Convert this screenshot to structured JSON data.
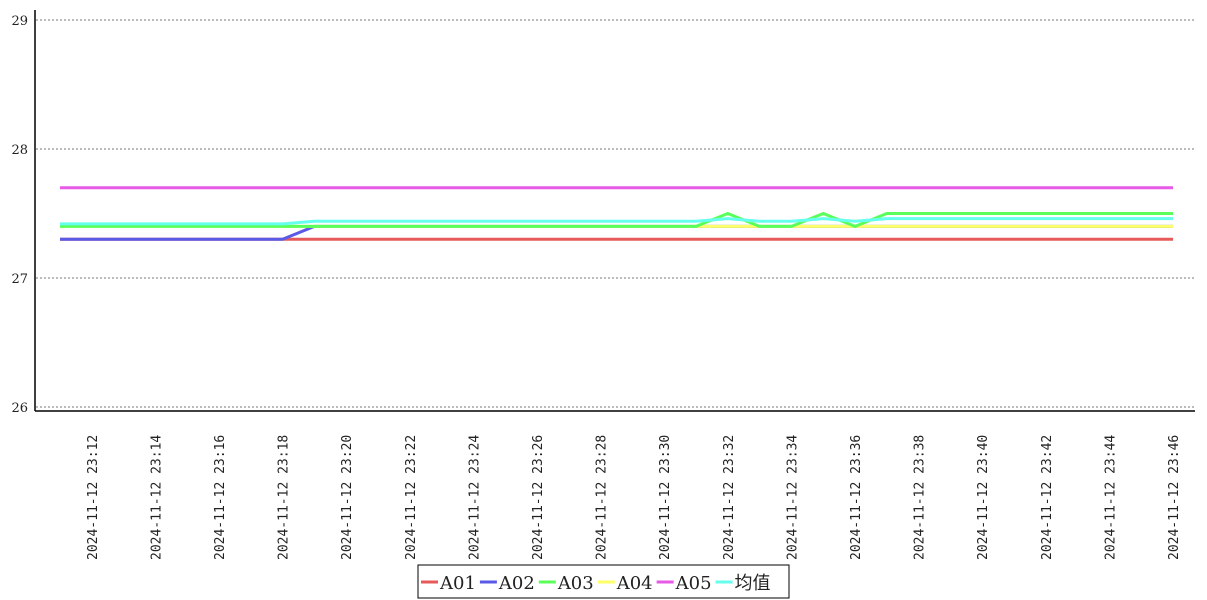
{
  "chart_data": {
    "type": "line",
    "categories": [
      null,
      "2024-11-12 23:12",
      null,
      "2024-11-12 23:14",
      null,
      "2024-11-12 23:16",
      null,
      "2024-11-12 23:18",
      null,
      "2024-11-12 23:20",
      null,
      "2024-11-12 23:22",
      null,
      "2024-11-12 23:24",
      null,
      "2024-11-12 23:26",
      null,
      "2024-11-12 23:28",
      null,
      "2024-11-12 23:30",
      null,
      "2024-11-12 23:32",
      null,
      "2024-11-12 23:34",
      null,
      "2024-11-12 23:36",
      null,
      "2024-11-12 23:38",
      null,
      "2024-11-12 23:40",
      null,
      "2024-11-12 23:42",
      null,
      "2024-11-12 23:44",
      null,
      "2024-11-12 23:46"
    ],
    "series": [
      {
        "name": "A01",
        "color": "#e65a5a",
        "values": [
          27.3,
          27.3,
          27.3,
          27.3,
          27.3,
          27.3,
          27.3,
          27.3,
          27.3,
          27.3,
          27.3,
          27.3,
          27.3,
          27.3,
          27.3,
          27.3,
          27.3,
          27.3,
          27.3,
          27.3,
          27.3,
          27.3,
          27.3,
          27.3,
          27.3,
          27.3,
          27.3,
          27.3,
          27.3,
          27.3,
          27.3,
          27.3,
          27.3,
          27.3,
          27.3,
          27.3
        ]
      },
      {
        "name": "A02",
        "color": "#5a5ae6",
        "values": [
          27.3,
          27.3,
          27.3,
          27.3,
          27.3,
          27.3,
          27.3,
          27.3,
          27.4,
          27.4,
          27.4,
          27.4,
          27.4,
          27.4,
          27.4,
          27.4,
          27.4,
          27.4,
          27.4,
          27.4,
          27.4,
          27.4,
          27.4,
          27.4,
          27.4,
          27.4,
          27.4,
          27.4,
          27.4,
          27.4,
          27.4,
          27.4,
          27.4,
          27.4,
          27.4,
          27.4
        ]
      },
      {
        "name": "A04",
        "color": "#ffff66",
        "values": [
          27.4,
          27.4,
          27.4,
          27.4,
          27.4,
          27.4,
          27.4,
          27.4,
          27.4,
          27.4,
          27.4,
          27.4,
          27.4,
          27.4,
          27.4,
          27.4,
          27.4,
          27.4,
          27.4,
          27.4,
          27.4,
          27.4,
          27.4,
          27.4,
          27.4,
          27.4,
          27.4,
          27.4,
          27.4,
          27.4,
          27.4,
          27.4,
          27.4,
          27.4,
          27.4,
          27.4
        ]
      },
      {
        "name": "A03",
        "color": "#5aff5a",
        "values": [
          27.4,
          27.4,
          27.4,
          27.4,
          27.4,
          27.4,
          27.4,
          27.4,
          27.4,
          27.4,
          27.4,
          27.4,
          27.4,
          27.4,
          27.4,
          27.4,
          27.4,
          27.4,
          27.4,
          27.4,
          27.4,
          27.5,
          27.4,
          27.4,
          27.5,
          27.4,
          27.5,
          27.5,
          27.5,
          27.5,
          27.5,
          27.5,
          27.5,
          27.5,
          27.5,
          27.5
        ]
      },
      {
        "name": "A05",
        "color": "#e65ae6",
        "values": [
          27.7,
          27.7,
          27.7,
          27.7,
          27.7,
          27.7,
          27.7,
          27.7,
          27.7,
          27.7,
          27.7,
          27.7,
          27.7,
          27.7,
          27.7,
          27.7,
          27.7,
          27.7,
          27.7,
          27.7,
          27.7,
          27.7,
          27.7,
          27.7,
          27.7,
          27.7,
          27.7,
          27.7,
          27.7,
          27.7,
          27.7,
          27.7,
          27.7,
          27.7,
          27.7,
          27.7
        ]
      },
      {
        "name": "均值",
        "color": "#66ffee",
        "values": [
          27.42,
          27.42,
          27.42,
          27.42,
          27.42,
          27.42,
          27.42,
          27.42,
          27.44,
          27.44,
          27.44,
          27.44,
          27.44,
          27.44,
          27.44,
          27.44,
          27.44,
          27.44,
          27.44,
          27.44,
          27.44,
          27.46,
          27.44,
          27.44,
          27.46,
          27.44,
          27.46,
          27.46,
          27.46,
          27.46,
          27.46,
          27.46,
          27.46,
          27.46,
          27.46,
          27.46
        ]
      }
    ],
    "legend_order": [
      0,
      1,
      3,
      2,
      4,
      5
    ],
    "ylim": [
      26,
      29
    ],
    "yticks": [
      26,
      27,
      28,
      29
    ],
    "grid": true,
    "legend": "bottom"
  }
}
